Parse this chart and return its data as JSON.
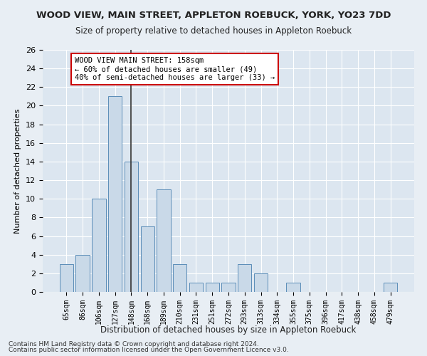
{
  "title": "WOOD VIEW, MAIN STREET, APPLETON ROEBUCK, YORK, YO23 7DD",
  "subtitle": "Size of property relative to detached houses in Appleton Roebuck",
  "xlabel": "Distribution of detached houses by size in Appleton Roebuck",
  "ylabel": "Number of detached properties",
  "categories": [
    "65sqm",
    "86sqm",
    "106sqm",
    "127sqm",
    "148sqm",
    "168sqm",
    "189sqm",
    "210sqm",
    "231sqm",
    "251sqm",
    "272sqm",
    "293sqm",
    "313sqm",
    "334sqm",
    "355sqm",
    "375sqm",
    "396sqm",
    "417sqm",
    "438sqm",
    "458sqm",
    "479sqm"
  ],
  "values": [
    3,
    4,
    10,
    21,
    14,
    7,
    11,
    3,
    1,
    1,
    1,
    3,
    2,
    0,
    1,
    0,
    0,
    0,
    0,
    0,
    1
  ],
  "bar_color": "#c9d9e8",
  "bar_edge_color": "#5b8db8",
  "vline_index": 4,
  "vline_color": "#333333",
  "annotation_text": "WOOD VIEW MAIN STREET: 158sqm\n← 60% of detached houses are smaller (49)\n40% of semi-detached houses are larger (33) →",
  "annotation_box_color": "#ffffff",
  "annotation_box_edge": "#cc0000",
  "ylim": [
    0,
    26
  ],
  "yticks": [
    0,
    2,
    4,
    6,
    8,
    10,
    12,
    14,
    16,
    18,
    20,
    22,
    24,
    26
  ],
  "footer1": "Contains HM Land Registry data © Crown copyright and database right 2024.",
  "footer2": "Contains public sector information licensed under the Open Government Licence v3.0.",
  "bg_color": "#e8eef4",
  "plot_bg_color": "#dce6f0"
}
